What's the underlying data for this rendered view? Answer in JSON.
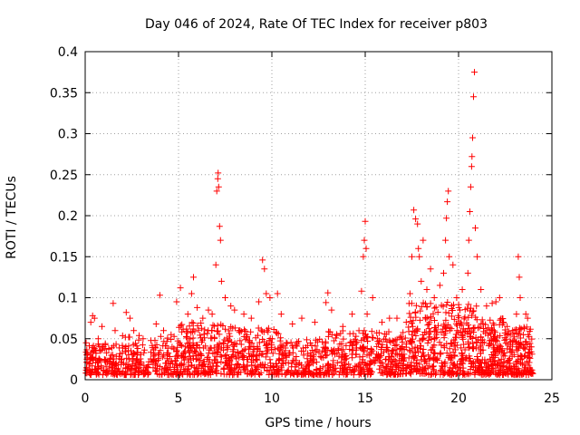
{
  "chart_data": {
    "type": "scatter",
    "title": "Day 046 of 2024, Rate Of TEC Index for receiver p803",
    "xlabel": "GPS time / hours",
    "ylabel": "ROTI / TECUs",
    "xlim": [
      0,
      25
    ],
    "ylim": [
      0,
      0.4
    ],
    "x_ticks": [
      0,
      5,
      10,
      15,
      20,
      25
    ],
    "x_tick_labels": [
      "0",
      "5",
      "10",
      "15",
      "20",
      "25"
    ],
    "y_ticks": [
      0,
      0.05,
      0.1,
      0.15,
      0.2,
      0.25,
      0.3,
      0.35,
      0.4
    ],
    "y_tick_labels": [
      "0",
      "0.05",
      "0.1",
      "0.15",
      "0.2",
      "0.25",
      "0.3",
      "0.35",
      "0.4"
    ],
    "grid": true,
    "marker": "+",
    "color": "#ff0000",
    "series": [
      {
        "name": "ROTI",
        "points": [
          [
            0.05,
            0.045
          ],
          [
            0.1,
            0.03
          ],
          [
            0.2,
            0.02
          ],
          [
            0.3,
            0.07
          ],
          [
            0.4,
            0.078
          ],
          [
            0.5,
            0.075
          ],
          [
            0.7,
            0.05
          ],
          [
            0.9,
            0.065
          ],
          [
            1.5,
            0.093
          ],
          [
            1.6,
            0.06
          ],
          [
            2.2,
            0.082
          ],
          [
            2.4,
            0.075
          ],
          [
            2.6,
            0.06
          ],
          [
            3.1,
            0.05
          ],
          [
            3.8,
            0.068
          ],
          [
            4.0,
            0.103
          ],
          [
            4.2,
            0.06
          ],
          [
            4.6,
            0.055
          ],
          [
            4.9,
            0.095
          ],
          [
            5.1,
            0.112
          ],
          [
            5.5,
            0.08
          ],
          [
            5.7,
            0.105
          ],
          [
            5.8,
            0.125
          ],
          [
            6.0,
            0.088
          ],
          [
            6.3,
            0.075
          ],
          [
            6.6,
            0.085
          ],
          [
            6.8,
            0.08
          ],
          [
            7.0,
            0.14
          ],
          [
            7.05,
            0.23
          ],
          [
            7.1,
            0.245
          ],
          [
            7.12,
            0.252
          ],
          [
            7.15,
            0.235
          ],
          [
            7.2,
            0.187
          ],
          [
            7.25,
            0.17
          ],
          [
            7.3,
            0.12
          ],
          [
            7.5,
            0.1
          ],
          [
            7.8,
            0.09
          ],
          [
            8.0,
            0.085
          ],
          [
            8.5,
            0.08
          ],
          [
            8.9,
            0.075
          ],
          [
            9.3,
            0.095
          ],
          [
            9.5,
            0.146
          ],
          [
            9.6,
            0.135
          ],
          [
            9.7,
            0.105
          ],
          [
            9.9,
            0.1
          ],
          [
            10.3,
            0.105
          ],
          [
            10.5,
            0.08
          ],
          [
            11.1,
            0.068
          ],
          [
            11.6,
            0.075
          ],
          [
            12.3,
            0.07
          ],
          [
            12.9,
            0.094
          ],
          [
            13.0,
            0.106
          ],
          [
            13.2,
            0.085
          ],
          [
            13.8,
            0.065
          ],
          [
            14.3,
            0.08
          ],
          [
            14.8,
            0.108
          ],
          [
            14.9,
            0.15
          ],
          [
            14.95,
            0.17
          ],
          [
            15.0,
            0.193
          ],
          [
            15.05,
            0.16
          ],
          [
            15.1,
            0.08
          ],
          [
            15.4,
            0.1
          ],
          [
            15.9,
            0.07
          ],
          [
            16.3,
            0.075
          ],
          [
            16.7,
            0.075
          ],
          [
            17.2,
            0.07
          ],
          [
            17.4,
            0.105
          ],
          [
            17.5,
            0.15
          ],
          [
            17.6,
            0.207
          ],
          [
            17.7,
            0.196
          ],
          [
            17.8,
            0.19
          ],
          [
            17.85,
            0.16
          ],
          [
            17.9,
            0.15
          ],
          [
            18.0,
            0.12
          ],
          [
            18.1,
            0.17
          ],
          [
            18.3,
            0.11
          ],
          [
            18.5,
            0.135
          ],
          [
            18.7,
            0.1
          ],
          [
            19.0,
            0.115
          ],
          [
            19.2,
            0.13
          ],
          [
            19.3,
            0.17
          ],
          [
            19.35,
            0.197
          ],
          [
            19.4,
            0.217
          ],
          [
            19.45,
            0.23
          ],
          [
            19.5,
            0.15
          ],
          [
            19.7,
            0.14
          ],
          [
            19.9,
            0.1
          ],
          [
            20.2,
            0.11
          ],
          [
            20.5,
            0.13
          ],
          [
            20.55,
            0.17
          ],
          [
            20.6,
            0.205
          ],
          [
            20.65,
            0.235
          ],
          [
            20.7,
            0.26
          ],
          [
            20.72,
            0.272
          ],
          [
            20.75,
            0.295
          ],
          [
            20.8,
            0.345
          ],
          [
            20.85,
            0.375
          ],
          [
            20.9,
            0.185
          ],
          [
            21.0,
            0.15
          ],
          [
            21.2,
            0.11
          ],
          [
            21.5,
            0.09
          ],
          [
            21.8,
            0.093
          ],
          [
            22.0,
            0.095
          ],
          [
            22.2,
            0.1
          ],
          [
            22.4,
            0.07
          ],
          [
            22.6,
            0.065
          ],
          [
            22.9,
            0.06
          ],
          [
            23.1,
            0.08
          ],
          [
            23.2,
            0.15
          ],
          [
            23.25,
            0.125
          ],
          [
            23.3,
            0.1
          ],
          [
            23.6,
            0.08
          ],
          [
            23.7,
            0.075
          ],
          [
            23.9,
            0.04
          ]
        ]
      }
    ],
    "dense_band": {
      "description_free_seed": 46,
      "segments": [
        [
          0.0,
          2.0,
          0.006,
          0.045,
          150
        ],
        [
          2.0,
          5.0,
          0.006,
          0.055,
          210
        ],
        [
          5.0,
          7.5,
          0.006,
          0.07,
          220
        ],
        [
          7.5,
          10.5,
          0.006,
          0.065,
          230
        ],
        [
          10.5,
          13.0,
          0.006,
          0.05,
          170
        ],
        [
          13.0,
          15.5,
          0.006,
          0.06,
          180
        ],
        [
          15.5,
          17.3,
          0.006,
          0.06,
          150
        ],
        [
          17.3,
          21.0,
          0.006,
          0.095,
          380
        ],
        [
          21.0,
          22.5,
          0.006,
          0.075,
          180
        ],
        [
          22.5,
          24.0,
          0.006,
          0.065,
          160
        ]
      ]
    }
  }
}
